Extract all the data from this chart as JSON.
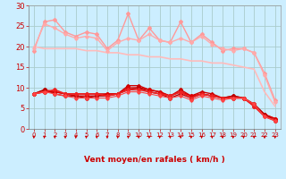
{
  "title": "",
  "xlabel": "Vent moyen/en rafales ( km/h )",
  "x": [
    0,
    1,
    2,
    3,
    4,
    5,
    6,
    7,
    8,
    9,
    10,
    11,
    12,
    13,
    14,
    15,
    16,
    17,
    18,
    19,
    20,
    21,
    22,
    23
  ],
  "lines": [
    {
      "y": [
        19.0,
        26.0,
        26.5,
        23.5,
        22.5,
        23.5,
        23.0,
        19.5,
        21.5,
        28.0,
        21.5,
        24.5,
        21.5,
        21.0,
        26.0,
        21.0,
        23.0,
        21.0,
        19.0,
        19.5,
        19.5,
        18.5,
        13.5,
        7.0
      ],
      "color": "#ff9999",
      "lw": 1.0,
      "marker": "D",
      "ms": 2.0
    },
    {
      "y": [
        19.5,
        25.5,
        24.5,
        23.0,
        22.0,
        22.5,
        22.0,
        19.0,
        21.0,
        22.0,
        21.5,
        23.0,
        21.5,
        21.0,
        22.0,
        21.0,
        22.5,
        20.5,
        19.5,
        19.0,
        19.5,
        18.5,
        13.0,
        6.5
      ],
      "color": "#ffaaaa",
      "lw": 1.0,
      "marker": "D",
      "ms": 1.8
    },
    {
      "y": [
        20.0,
        19.5,
        19.5,
        19.5,
        19.5,
        19.0,
        19.0,
        18.5,
        18.5,
        18.0,
        18.0,
        17.5,
        17.5,
        17.0,
        17.0,
        16.5,
        16.5,
        16.0,
        16.0,
        15.5,
        15.0,
        14.5,
        9.0,
        5.5
      ],
      "color": "#ffbbbb",
      "lw": 1.2,
      "marker": null,
      "ms": 0
    },
    {
      "y": [
        8.5,
        9.5,
        9.0,
        8.5,
        8.5,
        8.5,
        8.5,
        8.5,
        8.5,
        10.5,
        10.5,
        9.5,
        9.0,
        8.0,
        9.5,
        8.0,
        9.0,
        8.5,
        7.5,
        8.0,
        7.5,
        6.0,
        3.5,
        2.5
      ],
      "color": "#cc0000",
      "lw": 1.0,
      "marker": "D",
      "ms": 2.0
    },
    {
      "y": [
        8.5,
        9.0,
        9.0,
        8.5,
        8.0,
        8.0,
        8.0,
        8.5,
        8.5,
        10.0,
        10.0,
        9.5,
        9.0,
        8.0,
        9.0,
        8.0,
        8.5,
        8.0,
        7.5,
        7.5,
        7.5,
        5.5,
        3.5,
        2.5
      ],
      "color": "#dd0000",
      "lw": 1.0,
      "marker": "D",
      "ms": 2.0
    },
    {
      "y": [
        8.5,
        9.5,
        8.5,
        8.0,
        8.0,
        7.5,
        8.0,
        8.0,
        8.5,
        9.5,
        10.0,
        9.0,
        8.5,
        7.5,
        8.5,
        7.5,
        8.5,
        8.0,
        7.5,
        8.0,
        7.5,
        6.0,
        3.5,
        2.0
      ],
      "color": "#bb0000",
      "lw": 1.0,
      "marker": "D",
      "ms": 2.0
    },
    {
      "y": [
        8.5,
        9.0,
        9.5,
        8.5,
        8.5,
        8.5,
        8.5,
        8.0,
        8.5,
        9.5,
        9.5,
        9.0,
        8.5,
        8.0,
        9.0,
        7.5,
        8.5,
        8.0,
        7.5,
        7.5,
        7.5,
        5.5,
        3.0,
        2.0
      ],
      "color": "#ee2222",
      "lw": 1.2,
      "marker": "D",
      "ms": 2.0
    },
    {
      "y": [
        8.5,
        9.0,
        8.5,
        8.0,
        7.5,
        7.5,
        7.5,
        7.5,
        8.0,
        9.0,
        9.0,
        8.5,
        8.0,
        7.5,
        8.0,
        7.0,
        8.0,
        7.5,
        7.0,
        7.5,
        7.5,
        6.0,
        3.0,
        2.0
      ],
      "color": "#ff4444",
      "lw": 0.8,
      "marker": "D",
      "ms": 1.8
    }
  ],
  "ylim": [
    0,
    30
  ],
  "yticks": [
    0,
    5,
    10,
    15,
    20,
    25,
    30
  ],
  "bg_color": "#cceeff",
  "grid_color": "#aacccc",
  "tick_color": "#cc0000",
  "label_color": "#cc0000",
  "xlabel_fontsize": 6.5,
  "ytick_fontsize": 6,
  "xtick_fontsize": 5.0
}
